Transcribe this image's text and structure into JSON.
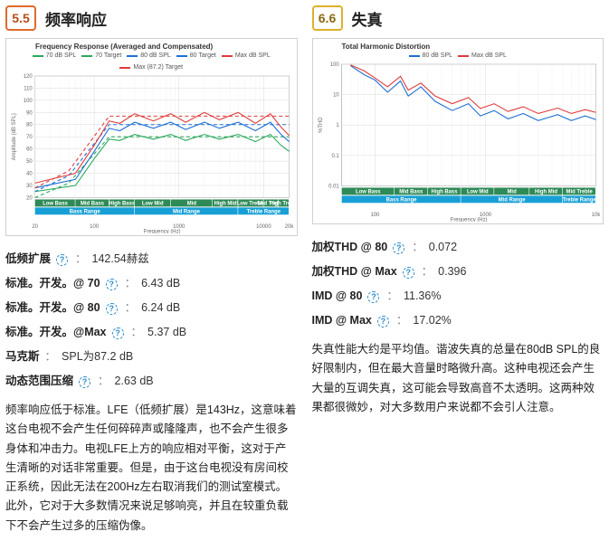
{
  "left": {
    "score": "5.5",
    "title": "频率响应",
    "chart": {
      "title": "Frequency Response (Averaged and Compensated)",
      "legend": [
        {
          "label": "70 dB SPL",
          "color": "#2aa85c",
          "dash": "0"
        },
        {
          "label": "70 Target",
          "color": "#2aa85c",
          "dash": "4 3"
        },
        {
          "label": "80 dB SPL",
          "color": "#1d6fd4",
          "dash": "0"
        },
        {
          "label": "80 Target",
          "color": "#1d6fd4",
          "dash": "4 3"
        },
        {
          "label": "Max dB SPL",
          "color": "#e03a3a",
          "dash": "0"
        },
        {
          "label": "Max (87.2) Target",
          "color": "#e03a3a",
          "dash": "4 3"
        }
      ],
      "xlabel": "Frequency (Hz)",
      "ylabel": "Amplitude (dB SPL)",
      "ylim": [
        20,
        120
      ],
      "yticks": [
        20,
        30,
        40,
        50,
        60,
        70,
        80,
        90,
        100,
        110,
        120
      ],
      "xticks": [
        {
          "v": 20,
          "l": "20"
        },
        {
          "v": 100,
          "l": "100"
        },
        {
          "v": 1000,
          "l": "1000"
        },
        {
          "v": 10000,
          "l": "10000"
        },
        {
          "v": 20000,
          "l": "20k"
        }
      ],
      "series": {
        "t70": {
          "color": "#2aa85c",
          "dash": "4 3",
          "pts": [
            [
              20,
              20
            ],
            [
              50,
              32
            ],
            [
              150,
              70
            ],
            [
              400,
              70
            ],
            [
              20000,
              70
            ]
          ]
        },
        "s70": {
          "color": "#2aa85c",
          "dash": "0",
          "pts": [
            [
              20,
              25
            ],
            [
              60,
              30
            ],
            [
              100,
              52
            ],
            [
              150,
              68
            ],
            [
              200,
              67
            ],
            [
              300,
              72
            ],
            [
              500,
              68
            ],
            [
              800,
              72
            ],
            [
              1200,
              67
            ],
            [
              2000,
              72
            ],
            [
              3000,
              68
            ],
            [
              5000,
              72
            ],
            [
              8000,
              66
            ],
            [
              12000,
              72
            ],
            [
              16000,
              63
            ],
            [
              20000,
              58
            ]
          ]
        },
        "t80": {
          "color": "#1d6fd4",
          "dash": "4 3",
          "pts": [
            [
              20,
              25
            ],
            [
              50,
              38
            ],
            [
              150,
              80
            ],
            [
              400,
              80
            ],
            [
              20000,
              80
            ]
          ]
        },
        "s80": {
          "color": "#1d6fd4",
          "dash": "0",
          "pts": [
            [
              20,
              28
            ],
            [
              60,
              35
            ],
            [
              100,
              58
            ],
            [
              150,
              77
            ],
            [
              200,
              75
            ],
            [
              300,
              82
            ],
            [
              500,
              77
            ],
            [
              800,
              82
            ],
            [
              1200,
              76
            ],
            [
              2000,
              82
            ],
            [
              3000,
              77
            ],
            [
              5000,
              82
            ],
            [
              8000,
              75
            ],
            [
              12000,
              82
            ],
            [
              16000,
              72
            ],
            [
              20000,
              66
            ]
          ]
        },
        "tmax": {
          "color": "#e03a3a",
          "dash": "4 3",
          "pts": [
            [
              20,
              28
            ],
            [
              50,
              42
            ],
            [
              150,
              87
            ],
            [
              400,
              87
            ],
            [
              20000,
              87
            ]
          ]
        },
        "smax": {
          "color": "#e03a3a",
          "dash": "0",
          "pts": [
            [
              20,
              32
            ],
            [
              60,
              40
            ],
            [
              100,
              63
            ],
            [
              150,
              83
            ],
            [
              200,
              81
            ],
            [
              300,
              89
            ],
            [
              500,
              83
            ],
            [
              800,
              89
            ],
            [
              1200,
              82
            ],
            [
              2000,
              90
            ],
            [
              3000,
              84
            ],
            [
              5000,
              90
            ],
            [
              8000,
              81
            ],
            [
              12000,
              89
            ],
            [
              16000,
              78
            ],
            [
              20000,
              71
            ]
          ]
        }
      },
      "range_bands": {
        "row1": [
          {
            "x0": 20,
            "x1": 60,
            "label": "Low Bass",
            "c": "#2e8a57"
          },
          {
            "x0": 60,
            "x1": 150,
            "label": "Mid Bass",
            "c": "#2e8a57"
          },
          {
            "x0": 150,
            "x1": 300,
            "label": "High Bass",
            "c": "#2e8a57"
          },
          {
            "x0": 300,
            "x1": 800,
            "label": "Low Mid",
            "c": "#2e8a57"
          },
          {
            "x0": 800,
            "x1": 2500,
            "label": "Mid",
            "c": "#2e8a57"
          },
          {
            "x0": 2500,
            "x1": 5000,
            "label": "High Mid",
            "c": "#2e8a57"
          },
          {
            "x0": 5000,
            "x1": 10000,
            "label": "Low Treble",
            "c": "#2e8a57"
          },
          {
            "x0": 10000,
            "x1": 15000,
            "label": "Mid Treble",
            "c": "#2e8a57"
          },
          {
            "x0": 15000,
            "x1": 20000,
            "label": "High Treble",
            "c": "#2e8a57"
          }
        ],
        "row2": [
          {
            "x0": 20,
            "x1": 300,
            "label": "Bass Range",
            "c": "#18a0d6"
          },
          {
            "x0": 300,
            "x1": 5000,
            "label": "Mid Range",
            "c": "#18a0d6"
          },
          {
            "x0": 5000,
            "x1": 20000,
            "label": "Treble Range",
            "c": "#18a0d6"
          }
        ]
      }
    },
    "specs": [
      {
        "label": "低频扩展",
        "value": "142.54赫兹"
      },
      {
        "label": "标准。开发。@ 70",
        "value": "6.43 dB"
      },
      {
        "label": "标准。开发。@ 80",
        "value": "6.24 dB"
      },
      {
        "label": "标准。开发。@Max",
        "value": "5.37 dB"
      },
      {
        "label": "马克斯",
        "value": "SPL为87.2 dB",
        "no_help": true
      },
      {
        "label": "动态范围压缩",
        "value": "2.63 dB"
      }
    ],
    "body": "频率响应低于标准。LFE（低频扩展）是143Hz，这意味着这台电视不会产生任何碎碎声或隆隆声，也不会产生很多身体和冲击力。电视LFE上方的响应相对平衡，这对于产生清晰的对话非常重要。但是，由于这台电视没有房间校正系统，因此无法在200Hz左右取消我们的测试室模式。此外，它对于大多数情况来说足够响亮，并且在较重负载下不会产生过多的压缩伪像。"
  },
  "right": {
    "score": "6.6",
    "title": "失真",
    "chart": {
      "title": "Total Harmonic Distortion",
      "legend": [
        {
          "label": "80 dB SPL",
          "color": "#1d6fd4",
          "dash": "0"
        },
        {
          "label": "Max dB SPL",
          "color": "#e03a3a",
          "dash": "0"
        }
      ],
      "xlabel": "Frequency (Hz)",
      "ylabel": "%THD",
      "ylim": [
        0.01,
        100
      ],
      "yticks_log": [
        0.01,
        0.1,
        1,
        10,
        100
      ],
      "xticks": [
        {
          "v": 100,
          "l": "100"
        },
        {
          "v": 1000,
          "l": "1000"
        },
        {
          "v": 10000,
          "l": "10k"
        }
      ],
      "series": {
        "s80": {
          "color": "#1d6fd4",
          "dash": "0",
          "pts": [
            [
              60,
              90
            ],
            [
              80,
              45
            ],
            [
              100,
              30
            ],
            [
              130,
              12
            ],
            [
              170,
              28
            ],
            [
              200,
              9
            ],
            [
              260,
              18
            ],
            [
              350,
              6
            ],
            [
              500,
              3
            ],
            [
              700,
              5
            ],
            [
              900,
              2
            ],
            [
              1200,
              3
            ],
            [
              1600,
              1.6
            ],
            [
              2200,
              2.4
            ],
            [
              3000,
              1.4
            ],
            [
              4500,
              2.2
            ],
            [
              6000,
              1.4
            ],
            [
              8000,
              2
            ],
            [
              10000,
              1.5
            ]
          ]
        },
        "smax": {
          "color": "#e03a3a",
          "dash": "0",
          "pts": [
            [
              60,
              95
            ],
            [
              80,
              60
            ],
            [
              100,
              35
            ],
            [
              130,
              18
            ],
            [
              170,
              40
            ],
            [
              200,
              14
            ],
            [
              260,
              24
            ],
            [
              350,
              9
            ],
            [
              500,
              5
            ],
            [
              700,
              8
            ],
            [
              900,
              3.5
            ],
            [
              1200,
              5
            ],
            [
              1600,
              2.8
            ],
            [
              2200,
              4
            ],
            [
              3000,
              2.4
            ],
            [
              4500,
              3.6
            ],
            [
              6000,
              2.4
            ],
            [
              8000,
              3.2
            ],
            [
              10000,
              2.6
            ]
          ]
        }
      },
      "range_bands": {
        "row1": [
          {
            "x0": 50,
            "x1": 150,
            "label": "Low Bass",
            "c": "#2e8a57"
          },
          {
            "x0": 150,
            "x1": 300,
            "label": "Mid Bass",
            "c": "#2e8a57"
          },
          {
            "x0": 300,
            "x1": 600,
            "label": "High Bass",
            "c": "#2e8a57"
          },
          {
            "x0": 600,
            "x1": 1200,
            "label": "Low Mid",
            "c": "#2e8a57"
          },
          {
            "x0": 1200,
            "x1": 2500,
            "label": "Mid",
            "c": "#2e8a57"
          },
          {
            "x0": 2500,
            "x1": 5000,
            "label": "High Mid",
            "c": "#2e8a57"
          },
          {
            "x0": 5000,
            "x1": 10000,
            "label": "Mid Treble",
            "c": "#2e8a57"
          }
        ],
        "row2": [
          {
            "x0": 50,
            "x1": 600,
            "label": "Bass Range",
            "c": "#18a0d6"
          },
          {
            "x0": 600,
            "x1": 5000,
            "label": "Mid Range",
            "c": "#18a0d6"
          },
          {
            "x0": 5000,
            "x1": 10000,
            "label": "Treble Range",
            "c": "#18a0d6"
          }
        ]
      }
    },
    "specs": [
      {
        "label": "加权THD @ 80",
        "value": "0.072"
      },
      {
        "label": "加权THD @ Max",
        "value": "0.396"
      },
      {
        "label": "IMD @ 80",
        "value": "11.36%"
      },
      {
        "label": "IMD @ Max",
        "value": "17.02%"
      }
    ],
    "body": "失真性能大约是平均值。谐波失真的总量在80dB SPL的良好限制内，但在最大音量时略微升高。这种电视还会产生大量的互调失真，这可能会导致高音不太透明。这两种效果都很微妙，对大多数用户来说都不会引人注意。"
  },
  "colors": {
    "grid": "#d9d9d9",
    "axis_text": "#666",
    "bg": "#ffffff"
  }
}
